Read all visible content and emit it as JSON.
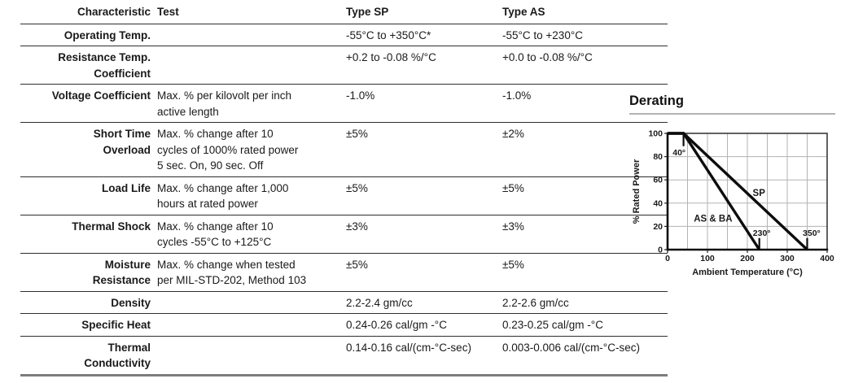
{
  "colors": {
    "ink": "#1a1a1a",
    "table_rule": "#2e2e2e",
    "table_rule_heavy": "#7d7d7d",
    "heading_underline": "#b3b3b3",
    "chart_grid": "#b3b3b3"
  },
  "table": {
    "headers": {
      "characteristic": "Characteristic",
      "test": "Test",
      "type_sp": "Type SP",
      "type_as": "Type AS"
    },
    "rows": [
      {
        "characteristic": "Operating Temp.",
        "test": "",
        "type_sp": "-55°C to +350°C*",
        "type_as": "-55°C to +230°C"
      },
      {
        "characteristic": "Resistance Temp.\nCoefficient",
        "test": "",
        "type_sp": "+0.2 to -0.08 %/°C",
        "type_as": "+0.0 to -0.08 %/°C"
      },
      {
        "characteristic": "Voltage Coefficient",
        "test": "Max. % per kilovolt per inch\nactive length",
        "type_sp": "-1.0%",
        "type_as": "-1.0%"
      },
      {
        "characteristic": "Short Time\nOverload",
        "test": "Max. % change after 10\ncycles of 1000% rated power\n5 sec. On, 90 sec. Off",
        "type_sp": "±5%",
        "type_as": "±2%"
      },
      {
        "characteristic": "Load Life",
        "test": "Max. % change after 1,000\nhours at rated power",
        "type_sp": "±5%",
        "type_as": "±5%"
      },
      {
        "characteristic": "Thermal Shock",
        "test": "Max. % change after 10\ncycles -55°C to +125°C",
        "type_sp": "±3%",
        "type_as": "±3%"
      },
      {
        "characteristic": "Moisture\nResistance",
        "test": "Max. % change when tested\nper MIL-STD-202, Method 103",
        "type_sp": "±5%",
        "type_as": "±5%"
      },
      {
        "characteristic": "Density",
        "test": "",
        "type_sp": "2.2-2.4 gm/cc",
        "type_as": "2.2-2.6 gm/cc"
      },
      {
        "characteristic": "Specific Heat",
        "test": "",
        "type_sp": "0.24-0.26 cal/gm -°C",
        "type_as": "0.23-0.25 cal/gm -°C"
      },
      {
        "characteristic": "Thermal\nConductivity",
        "test": "",
        "type_sp": "0.14-0.16 cal/(cm-°C-sec)",
        "type_as": "0.003-0.006 cal/(cm-°C-sec)"
      }
    ]
  },
  "chart_data": {
    "type": "line",
    "title": "Derating",
    "xlabel": "Ambient Temperature (°C)",
    "ylabel": "% Rated Power",
    "xlim": [
      0,
      400
    ],
    "ylim": [
      0,
      100
    ],
    "x_ticks": [
      0,
      100,
      200,
      300,
      400
    ],
    "y_ticks": [
      0,
      20,
      40,
      60,
      80,
      100
    ],
    "x_grid_step": 50,
    "y_grid_step": 20,
    "grid": true,
    "legend_position": "inline-labels",
    "series": [
      {
        "name": "SP",
        "points": [
          [
            0,
            100
          ],
          [
            40,
            100
          ],
          [
            350,
            0
          ]
        ],
        "label": {
          "text": "SP",
          "x": 229,
          "y": 46
        }
      },
      {
        "name": "AS & BA",
        "points": [
          [
            0,
            100
          ],
          [
            40,
            100
          ],
          [
            230,
            0
          ]
        ],
        "label": {
          "text": "AS & BA",
          "x": 114,
          "y": 24
        }
      }
    ],
    "annotations": [
      {
        "text": "40°",
        "x": 29,
        "y": 81
      },
      {
        "text": "230°",
        "x": 236,
        "y": 12
      },
      {
        "text": "350°",
        "x": 361,
        "y": 12
      }
    ],
    "tick_markers": [
      {
        "x": 40,
        "y1": 100,
        "y2": 89
      },
      {
        "x": 230,
        "y1": 0,
        "y2": 10
      },
      {
        "x": 350,
        "y1": 0,
        "y2": 10
      }
    ]
  }
}
